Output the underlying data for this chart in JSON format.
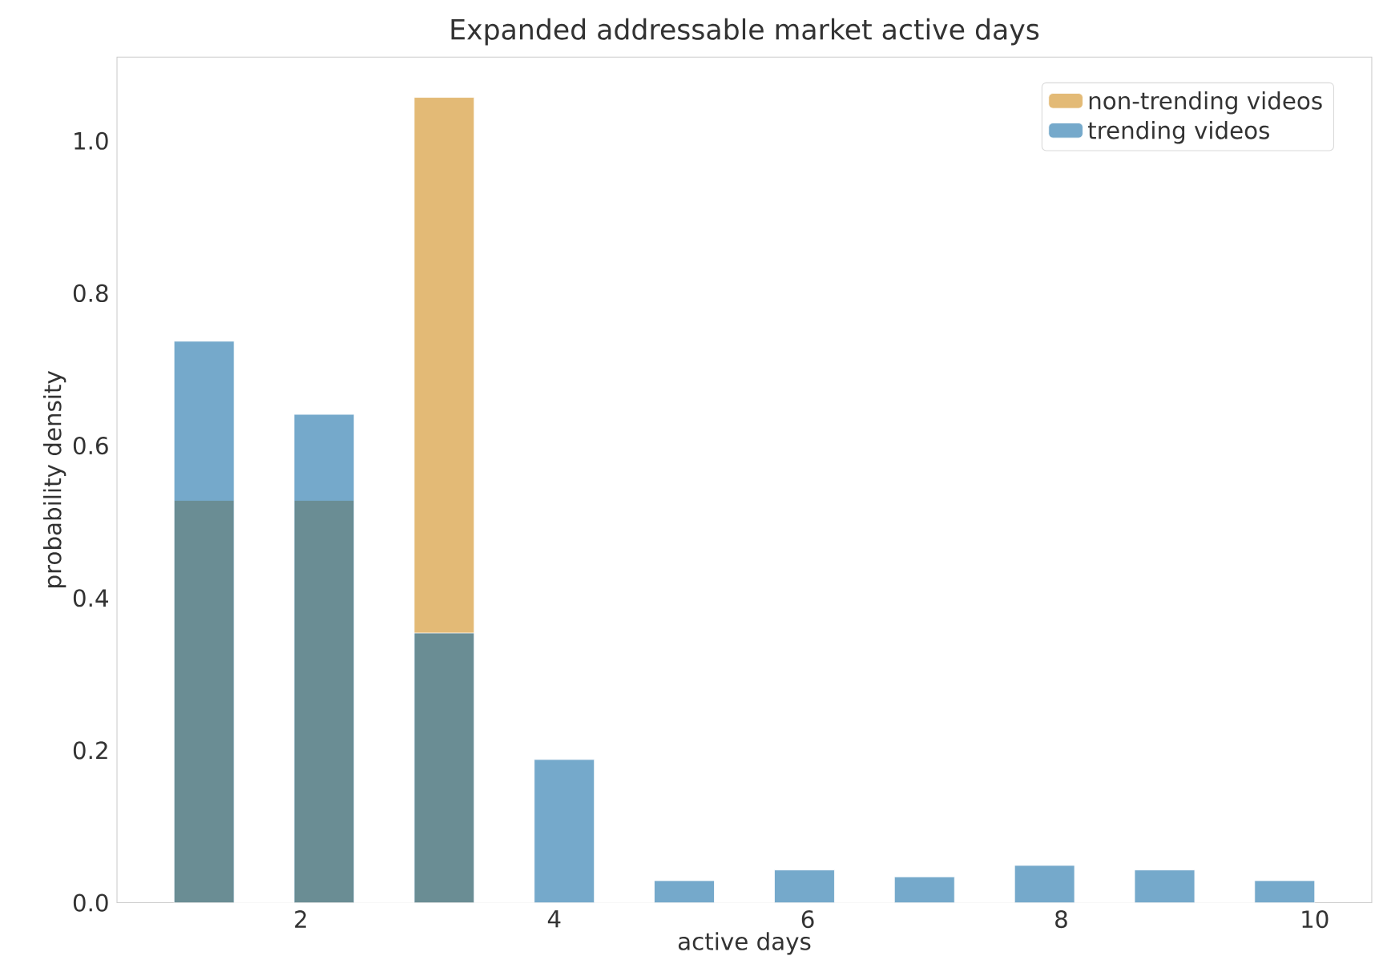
{
  "chart_data": {
    "type": "histogram",
    "title": "Expanded addressable market active days",
    "xlabel": "active days",
    "ylabel": "probability density",
    "bins": [
      1,
      1.474,
      1.947,
      2.421,
      2.895,
      3.368,
      3.842,
      4.316,
      4.789,
      5.263,
      5.737,
      6.211,
      6.684,
      7.158,
      7.632,
      8.105,
      8.579,
      9.053,
      9.526,
      10
    ],
    "series": [
      {
        "name": "non-trending videos",
        "color": "#e3ba76",
        "values": [
          0.528,
          0,
          0.528,
          0,
          1.057,
          0,
          0,
          0,
          0,
          0,
          0,
          0,
          0,
          0,
          0,
          0,
          0,
          0,
          0
        ]
      },
      {
        "name": "trending videos",
        "color": "#75a9cb",
        "values": [
          0.737,
          0,
          0.641,
          0,
          0.354,
          0,
          0.188,
          0,
          0.029,
          0,
          0.043,
          0,
          0.034,
          0,
          0.049,
          0,
          0.043,
          0,
          0.029
        ]
      }
    ],
    "xlim": [
      0.55,
      10.45
    ],
    "ylim": [
      0,
      1.11
    ],
    "xticks": [
      2,
      4,
      6,
      8,
      10
    ],
    "yticks": [
      {
        "value": 0,
        "label": "0.0"
      },
      {
        "value": 0.2,
        "label": "0.2"
      },
      {
        "value": 0.4,
        "label": "0.4"
      },
      {
        "value": 0.6,
        "label": "0.6"
      },
      {
        "value": 0.8,
        "label": "0.8"
      },
      {
        "value": 1.0,
        "label": "1.0"
      }
    ],
    "grid": false,
    "legend": "top right"
  }
}
